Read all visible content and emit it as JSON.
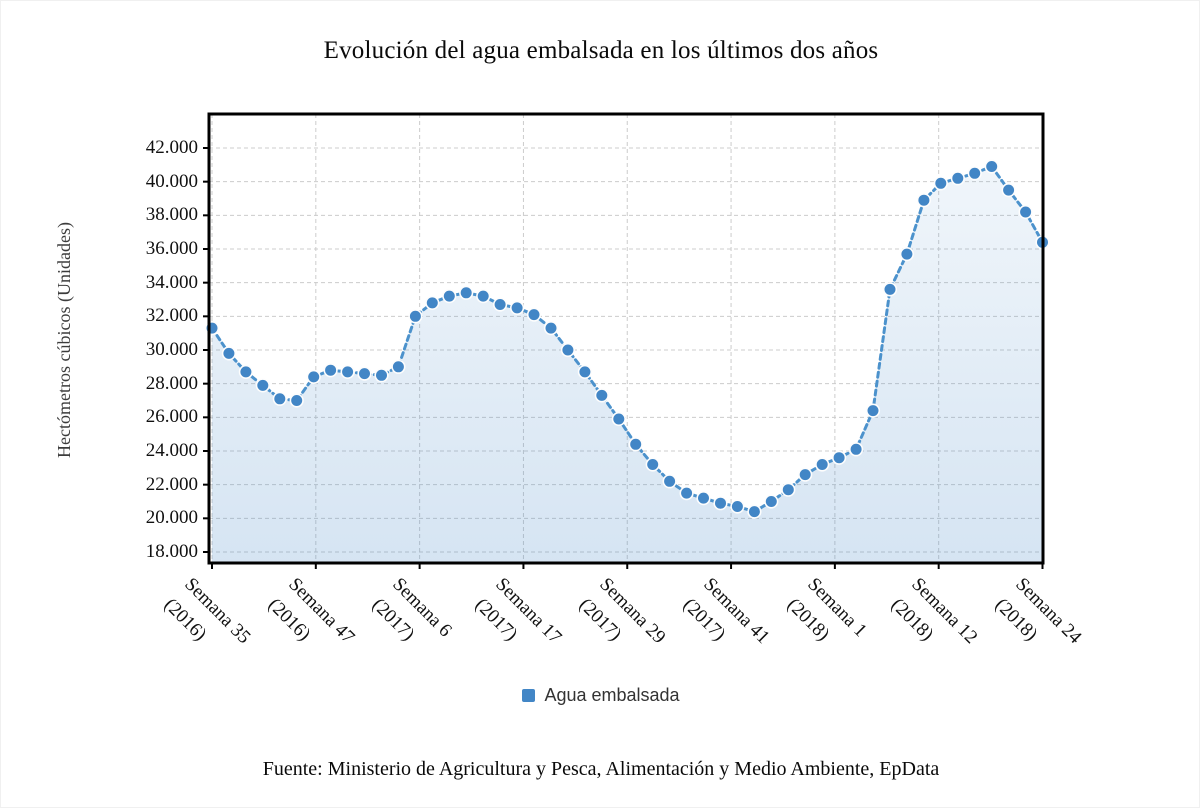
{
  "title": "Evolución del agua embalsada en los últimos dos años",
  "y_axis": {
    "title": "Hectómetros cúbicos (Unidades)",
    "tick_labels": [
      "42.000",
      "40.000",
      "38.000",
      "36.000",
      "34.000",
      "32.000",
      "30.000",
      "28.000",
      "26.000",
      "24.000",
      "22.000",
      "20.000",
      "18.000"
    ]
  },
  "x_axis": {
    "tick_labels": [
      {
        "line1": "Semana 35",
        "line2": "(2016)"
      },
      {
        "line1": "Semana 47",
        "line2": "(2016)"
      },
      {
        "line1": "Semana 6",
        "line2": "(2017)"
      },
      {
        "line1": "Semana 17",
        "line2": "(2017)"
      },
      {
        "line1": "Semana 29",
        "line2": "(2017)"
      },
      {
        "line1": "Semana 41",
        "line2": "(2017)"
      },
      {
        "line1": "Semana 1",
        "line2": "(2018)"
      },
      {
        "line1": "Semana 12",
        "line2": "(2018)"
      },
      {
        "line1": "Semana 24",
        "line2": "(2018)"
      }
    ]
  },
  "legend": {
    "label": "Agua embalsada"
  },
  "footer": "Fuente: Ministerio de Agricultura y Pesca, Alimentación y Medio Ambiente, EpData",
  "colors": {
    "marker": "#4286C6",
    "line": "#4C92CC",
    "area_top": "rgba(66,134,198,0.08)",
    "area_bottom": "rgba(66,134,198,0.22)",
    "grid": "#CCCCCC",
    "frame": "#000000"
  },
  "chart_data": {
    "type": "line",
    "subtype": "dashed line with circle markers and pale-blue area fill",
    "title": "Evolución del agua embalsada en los últimos dos años",
    "ylabel": "Hectómetros cúbicos (Unidades)",
    "xlabel": "",
    "x_tick_labels": [
      "Semana 35 (2016)",
      "Semana 47 (2016)",
      "Semana 6 (2017)",
      "Semana 17 (2017)",
      "Semana 29 (2017)",
      "Semana 41 (2017)",
      "Semana 1 (2018)",
      "Semana 12 (2018)",
      "Semana 24 (2018)"
    ],
    "ylim": [
      17350,
      44000
    ],
    "ytick_step": 2000,
    "ytick_min": 18000,
    "ytick_max": 42000,
    "grid": "dashed, horizontal and vertical",
    "legend_position": "bottom",
    "series": [
      {
        "name": "Agua embalsada",
        "unit": "hectómetros cúbicos",
        "values": [
          31300,
          29800,
          28700,
          27900,
          27100,
          27000,
          28400,
          28800,
          28700,
          28600,
          28500,
          29000,
          32000,
          32800,
          33200,
          33400,
          33200,
          32700,
          32500,
          32100,
          31300,
          30000,
          28700,
          27300,
          25900,
          24400,
          23200,
          22200,
          21500,
          21200,
          20900,
          20700,
          20400,
          21000,
          21700,
          22600,
          23200,
          23600,
          24100,
          26400,
          33600,
          35700,
          38900,
          39900,
          40200,
          40500,
          40900,
          39500,
          38200,
          36400
        ]
      }
    ]
  }
}
